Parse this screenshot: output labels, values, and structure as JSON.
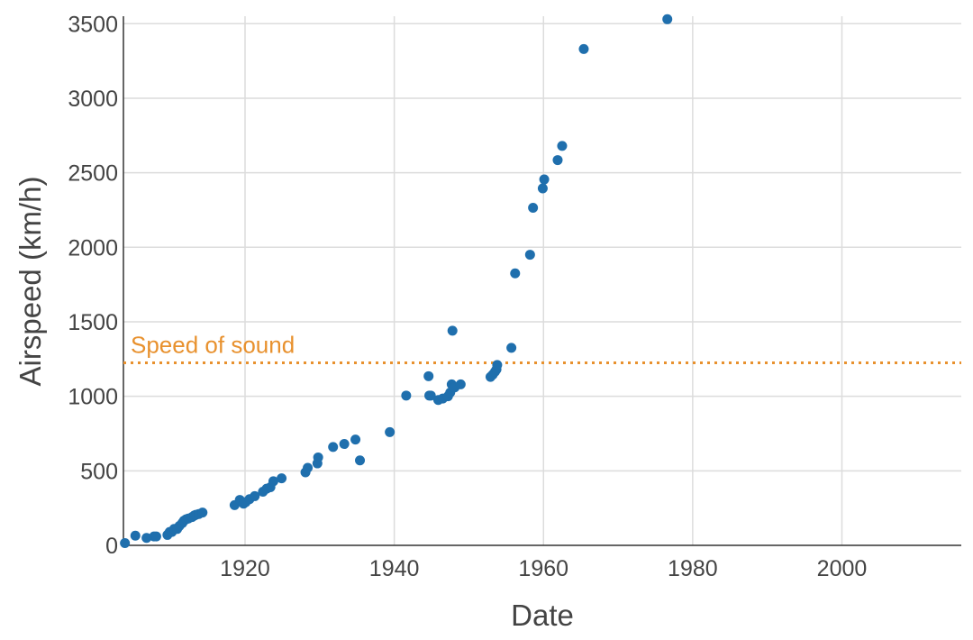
{
  "chart_data": {
    "type": "scatter",
    "title": "",
    "xlabel": "Date",
    "ylabel": "Airspeed (km/h)",
    "xlim": [
      1903.7,
      2016
    ],
    "ylim": [
      0,
      3550
    ],
    "x_ticks": [
      1920,
      1940,
      1960,
      1980,
      2000
    ],
    "x_tick_labels": [
      "1920",
      "1940",
      "1960",
      "1980",
      "2000"
    ],
    "y_ticks": [
      0,
      500,
      1000,
      1500,
      2000,
      2500,
      3000,
      3500
    ],
    "y_tick_labels": [
      "0",
      "500",
      "1000",
      "1500",
      "2000",
      "2500",
      "3000",
      "3500"
    ],
    "grid": true,
    "point_color": "#1f6fad",
    "reference_line": {
      "label": "Speed of sound",
      "y": 1225,
      "color": "#e8912e",
      "style": "dotted"
    },
    "series": [
      {
        "x": [
          1903.9,
          1905.3,
          1906.8,
          1907.8,
          1908.1,
          1909.6,
          1909.9,
          1910.2,
          1910.5,
          1910.9,
          1911.2,
          1911.6,
          1911.8,
          1912.1,
          1912.4,
          1912.9,
          1913.2,
          1913.4,
          1913.8,
          1914.3,
          1918.6,
          1919.3,
          1919.8,
          1920.1,
          1920.6,
          1921.3,
          1922.4,
          1922.9,
          1923.4,
          1923.8,
          1924.9,
          1928.1,
          1928.4,
          1929.7,
          1929.8,
          1931.8,
          1933.3,
          1934.8,
          1935.4,
          1939.4,
          1941.6,
          1944.6,
          1944.7,
          1944.9,
          1945.9,
          1946.5,
          1947.2,
          1947.5,
          1947.7,
          1947.8,
          1948.1,
          1948.9,
          1952.9,
          1953.2,
          1953.5,
          1953.7,
          1953.8,
          1955.7,
          1956.2,
          1958.2,
          1958.6,
          1959.9,
          1960.1,
          1961.9,
          1962.5,
          1965.4,
          1976.6
        ],
        "y": [
          15,
          65,
          50,
          60,
          60,
          70,
          90,
          90,
          110,
          110,
          130,
          150,
          165,
          175,
          180,
          190,
          200,
          205,
          210,
          220,
          270,
          305,
          280,
          290,
          310,
          330,
          360,
          380,
          390,
          430,
          450,
          490,
          520,
          550,
          590,
          660,
          680,
          710,
          570,
          760,
          1005,
          1135,
          1005,
          1005,
          975,
          985,
          1000,
          1025,
          1080,
          1440,
          1060,
          1080,
          1130,
          1145,
          1165,
          1180,
          1210,
          1325,
          1825,
          1950,
          2265,
          2395,
          2455,
          2585,
          2680,
          3330,
          3530
        ]
      }
    ]
  }
}
